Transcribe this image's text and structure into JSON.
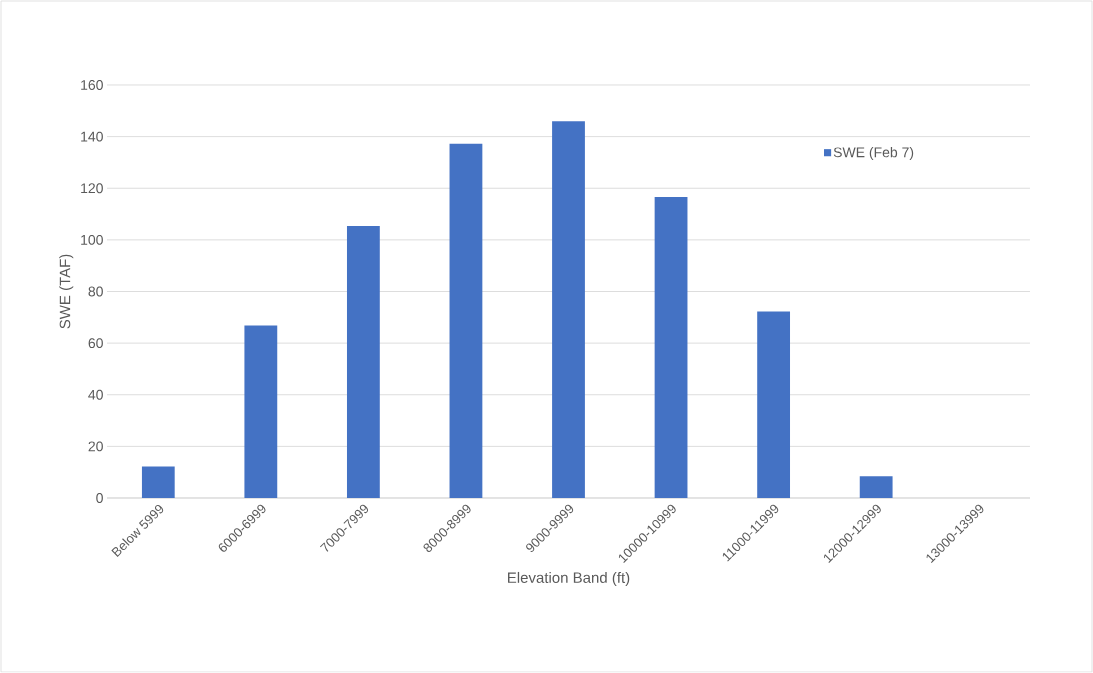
{
  "chart_data": {
    "type": "bar",
    "xlabel": "Elevation Band (ft)",
    "ylabel": "SWE (TAF)",
    "categories": [
      "Below 5999",
      "6000-6999",
      "7000-7999",
      "8000-8999",
      "9000-9999",
      "10000-10999",
      "11000-11999",
      "12000-12999",
      "13000-13999"
    ],
    "series": [
      {
        "name": "SWE (Feb 7)",
        "color": "#4472c4",
        "values": [
          12.2,
          66.8,
          105.4,
          137.2,
          146,
          116.6,
          72.3,
          8.4,
          0
        ]
      }
    ],
    "ylim": [
      0,
      160
    ],
    "yticks": [
      0,
      20,
      40,
      60,
      80,
      100,
      120,
      140,
      160
    ],
    "grid": "y",
    "legend": "top right"
  }
}
